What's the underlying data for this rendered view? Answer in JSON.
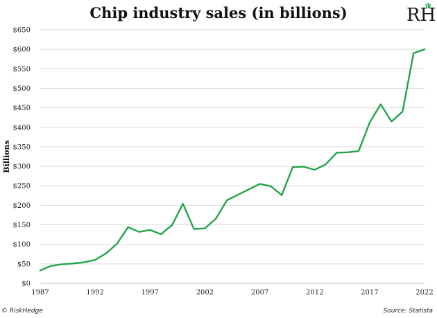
{
  "chart_data": {
    "type": "line",
    "title": "Chip industry sales (in billions)",
    "ylabel": "Billions",
    "xlabel": "",
    "x": [
      1987,
      1988,
      1989,
      1990,
      1991,
      1992,
      1993,
      1994,
      1995,
      1996,
      1997,
      1998,
      1999,
      2000,
      2001,
      2002,
      2003,
      2004,
      2005,
      2006,
      2007,
      2008,
      2009,
      2010,
      2011,
      2012,
      2013,
      2014,
      2015,
      2016,
      2017,
      2018,
      2019,
      2020,
      2021,
      2022
    ],
    "series": [
      {
        "values": [
          33,
          45,
          49,
          51,
          54,
          60,
          77,
          102,
          144,
          132,
          137,
          126,
          149,
          204,
          139,
          141,
          166,
          213,
          227,
          241,
          255,
          249,
          226,
          298,
          299,
          291,
          305,
          335,
          336,
          339,
          412,
          459,
          415,
          440,
          590,
          600
        ],
        "color": "#22a34a"
      }
    ],
    "ylim": [
      0,
      650
    ],
    "yticks": [
      0,
      50,
      100,
      150,
      200,
      250,
      300,
      350,
      400,
      450,
      500,
      550,
      600,
      650
    ],
    "ytick_labels": [
      "$0",
      "$50",
      "$100",
      "$150",
      "$200",
      "$250",
      "$300",
      "$350",
      "$400",
      "$450",
      "$500",
      "$550",
      "$600",
      "$650"
    ],
    "xticks": [
      1987,
      1992,
      1997,
      2002,
      2007,
      2012,
      2017,
      2022
    ],
    "xtick_labels": [
      "1987",
      "1992",
      "1997",
      "2002",
      "2007",
      "2012",
      "2017",
      "2022"
    ],
    "xlim": [
      1987,
      2022
    ],
    "grid": "horizontal"
  },
  "logo": {
    "text": "RH"
  },
  "footer": {
    "left": "© RiskHedge",
    "right": "Source: Statista"
  }
}
